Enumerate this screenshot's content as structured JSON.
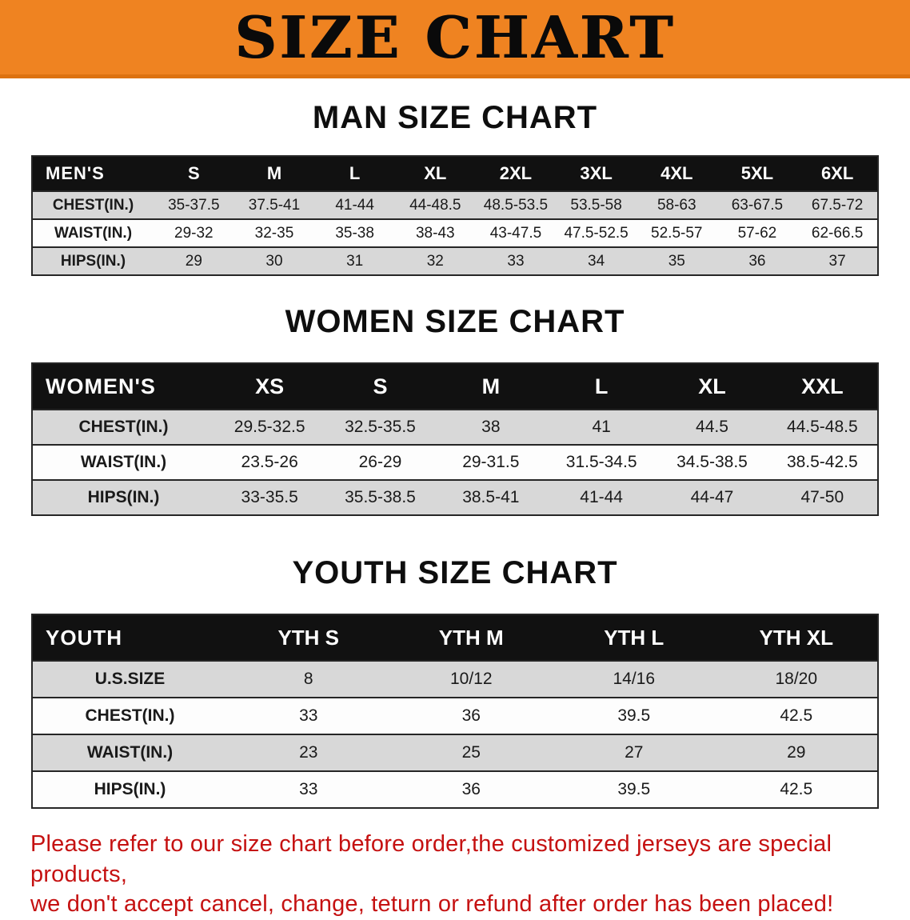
{
  "banner": {
    "title": "SIZE CHART"
  },
  "colors": {
    "banner_bg": "#ef8321",
    "banner_edge": "#dd7210",
    "header_bg": "#111111",
    "row_gray": "#d8d8d8",
    "row_white": "#fdfdfd",
    "line_color": "#262626",
    "disclaimer_red": "#c51111"
  },
  "sections": [
    {
      "heading": "MAN SIZE CHART",
      "table": {
        "corner": "MEN'S",
        "columns": [
          "S",
          "M",
          "L",
          "XL",
          "2XL",
          "3XL",
          "4XL",
          "5XL",
          "6XL"
        ],
        "rows": [
          {
            "label": "CHEST(IN.)",
            "values": [
              "35-37.5",
              "37.5-41",
              "41-44",
              "44-48.5",
              "48.5-53.5",
              "53.5-58",
              "58-63",
              "63-67.5",
              "67.5-72"
            ]
          },
          {
            "label": "WAIST(IN.)",
            "values": [
              "29-32",
              "32-35",
              "35-38",
              "38-43",
              "43-47.5",
              "47.5-52.5",
              "52.5-57",
              "57-62",
              "62-66.5"
            ]
          },
          {
            "label": "HIPS(IN.)",
            "values": [
              "29",
              "30",
              "31",
              "32",
              "33",
              "34",
              "35",
              "36",
              "37"
            ]
          }
        ]
      }
    },
    {
      "heading": "WOMEN SIZE CHART",
      "table": {
        "corner": "WOMEN'S",
        "columns": [
          "XS",
          "S",
          "M",
          "L",
          "XL",
          "XXL"
        ],
        "rows": [
          {
            "label": "CHEST(IN.)",
            "values": [
              "29.5-32.5",
              "32.5-35.5",
              "38",
              "41",
              "44.5",
              "44.5-48.5"
            ]
          },
          {
            "label": "WAIST(IN.)",
            "values": [
              "23.5-26",
              "26-29",
              "29-31.5",
              "31.5-34.5",
              "34.5-38.5",
              "38.5-42.5"
            ]
          },
          {
            "label": "HIPS(IN.)",
            "values": [
              "33-35.5",
              "35.5-38.5",
              "38.5-41",
              "41-44",
              "44-47",
              "47-50"
            ]
          }
        ]
      }
    },
    {
      "heading": "YOUTH SIZE CHART",
      "table": {
        "corner": "YOUTH",
        "columns": [
          "YTH S",
          "YTH M",
          "YTH L",
          "YTH XL"
        ],
        "rows": [
          {
            "label": "U.S.SIZE",
            "values": [
              "8",
              "10/12",
              "14/16",
              "18/20"
            ]
          },
          {
            "label": "CHEST(IN.)",
            "values": [
              "33",
              "36",
              "39.5",
              "42.5"
            ]
          },
          {
            "label": "WAIST(IN.)",
            "values": [
              "23",
              "25",
              "27",
              "29"
            ]
          },
          {
            "label": "HIPS(IN.)",
            "values": [
              "33",
              "36",
              "39.5",
              "42.5"
            ]
          }
        ]
      }
    }
  ],
  "disclaimer": {
    "line1": "Please refer to our size chart before order,the customized jerseys are special products,",
    "line2": "we don't accept cancel, change, teturn or refund after order has been placed!"
  }
}
